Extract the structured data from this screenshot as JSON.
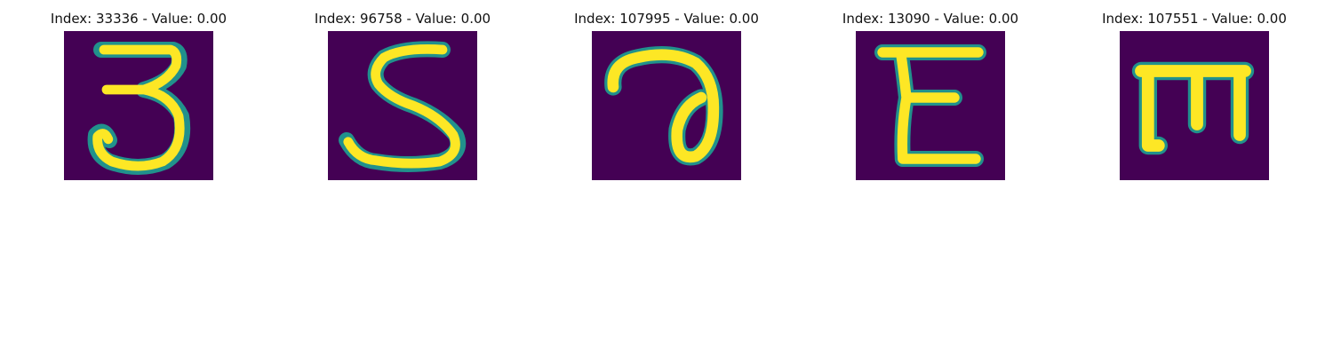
{
  "colors": {
    "background": "#440154",
    "mid_dark": "#3b528b",
    "mid": "#21918c",
    "mid_light": "#5ec962",
    "foreground": "#fde725"
  },
  "panels": [
    {
      "title": "Index: 33336 - Value: 0.00",
      "glyph": "three"
    },
    {
      "title": "Index: 96758 - Value: 0.00",
      "glyph": "s"
    },
    {
      "title": "Index: 107995 - Value: 0.00",
      "glyph": "a-loop"
    },
    {
      "title": "Index: 13090 - Value: 0.00",
      "glyph": "e"
    },
    {
      "title": "Index: 107551 - Value: 0.00",
      "glyph": "m"
    }
  ]
}
